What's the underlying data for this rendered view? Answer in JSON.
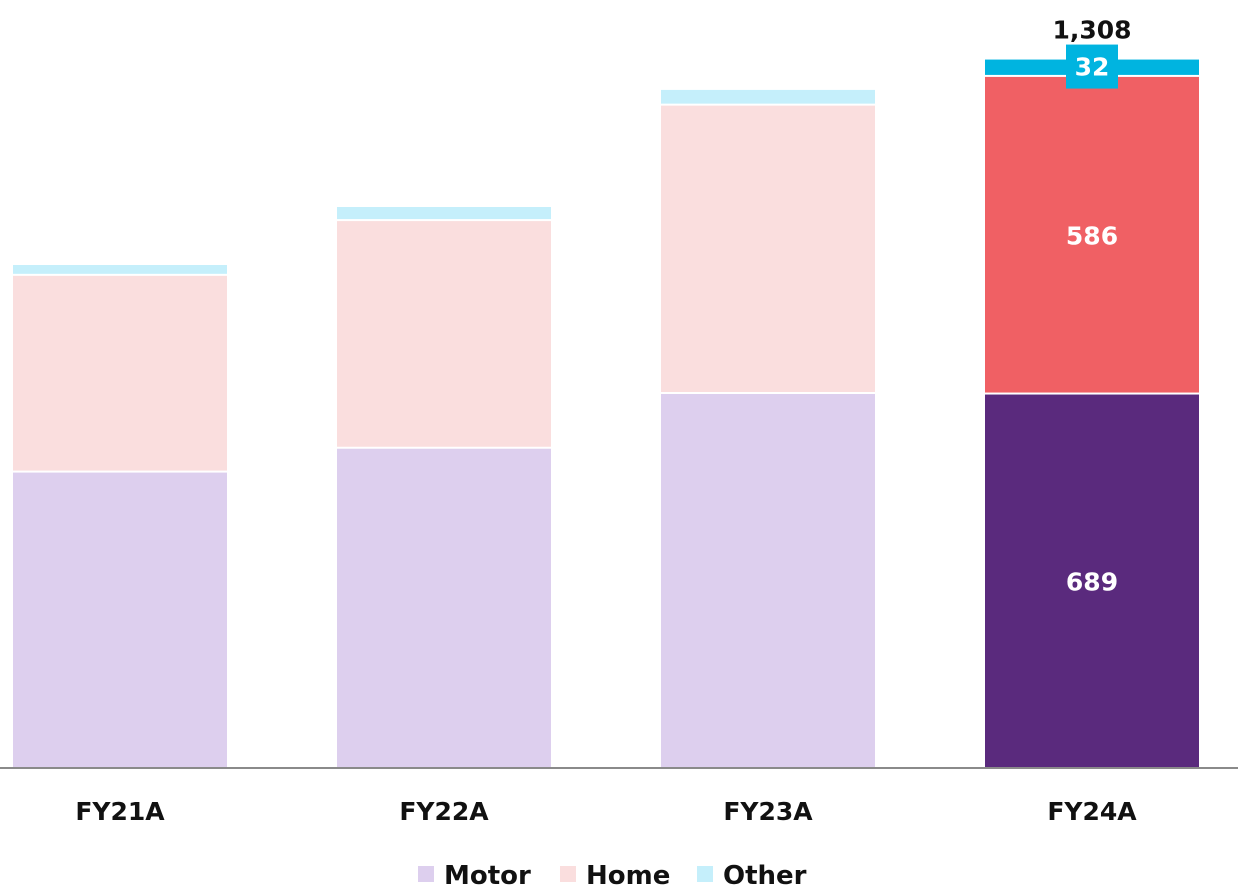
{
  "chart_data": {
    "type": "bar",
    "stacked": true,
    "categories": [
      "FY21A",
      "FY22A",
      "FY23A",
      "FY24A"
    ],
    "series": [
      {
        "name": "Motor",
        "values": [
          545,
          589,
          690,
          689
        ],
        "color": "#ddcfee",
        "highlight_color": "#5a2a7d"
      },
      {
        "name": "Home",
        "values": [
          363,
          420,
          532,
          586
        ],
        "color": "#fadede",
        "highlight_color": "#f06064"
      },
      {
        "name": "Other",
        "values": [
          20,
          26,
          29,
          32
        ],
        "color": "#c5effb",
        "highlight_color": "#00b4e0"
      }
    ],
    "highlighted_category": "FY24A",
    "data_labels": {
      "FY24A": [
        "689",
        "586",
        "32"
      ]
    },
    "totals": {
      "FY24A": "1,308"
    },
    "ylim": [
      0,
      1380
    ],
    "grid": false,
    "legend": {
      "position": "bottom-center",
      "entries": [
        "Motor",
        "Home",
        "Other"
      ]
    },
    "title": "",
    "xlabel": "",
    "ylabel": ""
  }
}
